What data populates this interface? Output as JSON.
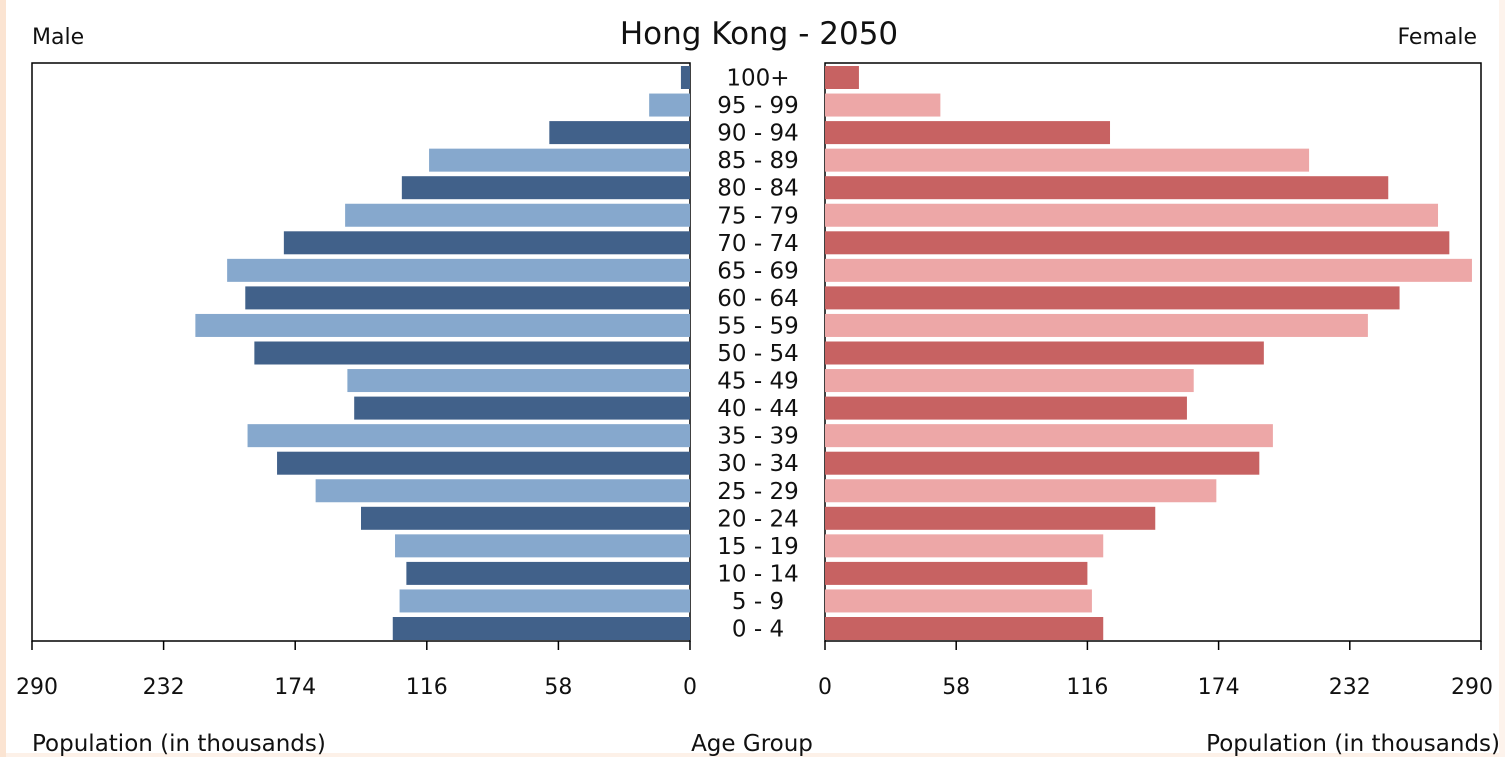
{
  "chart_data": {
    "type": "bar",
    "title": "Hong Kong - 2050",
    "left_label": "Male",
    "right_label": "Female",
    "center_xlabel": "Age Group",
    "xlabel_left": "Population (in thousands)",
    "xlabel_right": "Population (in thousands)",
    "xlim": [
      0,
      290
    ],
    "ticks_left": [
      "290",
      "232",
      "174",
      "116",
      "58",
      "0"
    ],
    "ticks_right": [
      "0",
      "58",
      "116",
      "174",
      "232",
      "290"
    ],
    "categories": [
      "100+",
      "95 - 99",
      "90 - 94",
      "85 - 89",
      "80 - 84",
      "75 - 79",
      "70 - 74",
      "65 - 69",
      "60 - 64",
      "55 - 59",
      "50 - 54",
      "45 - 49",
      "40 - 44",
      "35 - 39",
      "30 - 34",
      "25 - 29",
      "20 - 24",
      "15 - 19",
      "10 - 14",
      "5 - 9",
      "0 - 4"
    ],
    "series": [
      {
        "name": "Male",
        "colors": [
          "#41618a",
          "#86a8cd"
        ],
        "values": [
          4,
          18,
          62,
          115,
          127,
          152,
          179,
          204,
          196,
          218,
          192,
          151,
          148,
          195,
          182,
          165,
          145,
          130,
          125,
          128,
          131
        ]
      },
      {
        "name": "Female",
        "colors": [
          "#c76262",
          "#eda7a7"
        ],
        "values": [
          15,
          51,
          126,
          214,
          249,
          271,
          276,
          286,
          254,
          240,
          194,
          163,
          160,
          198,
          192,
          173,
          146,
          123,
          116,
          118,
          123
        ]
      }
    ]
  }
}
